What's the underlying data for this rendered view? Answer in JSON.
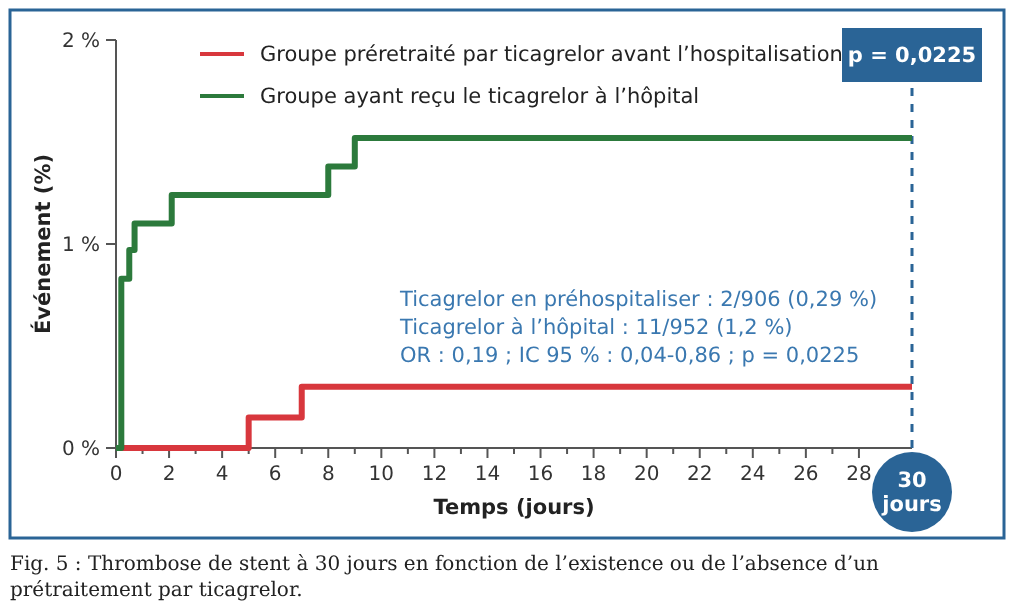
{
  "chart_data": {
    "type": "step",
    "xlabel": "Temps (jours)",
    "ylabel": "Événement (%)",
    "series": [
      {
        "name": "Groupe préretraité par ticagrelor avant l’hospitalisation",
        "color": "#d8373d",
        "x": [
          0,
          5,
          7,
          30
        ],
        "values": [
          0,
          0.15,
          0.3,
          0.3
        ]
      },
      {
        "name": "Groupe ayant reçu le ticagrelor à l’hôpital",
        "color": "#2c7a3c",
        "x": [
          0,
          0.2,
          0.5,
          0.7,
          2.1,
          8,
          9,
          30
        ],
        "values": [
          0,
          0.83,
          0.97,
          1.1,
          1.24,
          1.38,
          1.52,
          1.52
        ]
      }
    ],
    "xlim": [
      0,
      30
    ],
    "ylim": [
      0,
      2
    ],
    "xticks": [
      0,
      {
        "value": 1,
        "label": null
      },
      2,
      {
        "value": 3,
        "label": null
      },
      4,
      {
        "value": 5,
        "label": null
      },
      6,
      {
        "value": 7,
        "label": null
      },
      8,
      {
        "value": 9,
        "label": null
      },
      10,
      {
        "value": 11,
        "label": null
      },
      12,
      {
        "value": 13,
        "label": null
      },
      14,
      {
        "value": 15,
        "label": null
      },
      16,
      {
        "value": 17,
        "label": null
      },
      18,
      {
        "value": 19,
        "label": null
      },
      20,
      {
        "value": 21,
        "label": null
      },
      22,
      {
        "value": 23,
        "label": null
      },
      24,
      {
        "value": 25,
        "label": null
      },
      26,
      {
        "value": 27,
        "label": null
      },
      28
    ],
    "yticks": [
      {
        "value": 0,
        "label": "0 %"
      },
      {
        "value": 1,
        "label": "1 %"
      },
      {
        "value": 2,
        "label": "2 %"
      }
    ],
    "ref_lines": [
      {
        "axis": "x",
        "value": 30,
        "color": "#2a6496",
        "line_style": "dashed"
      }
    ],
    "annotations": [
      {
        "text": "p = 0,0225",
        "x": 30,
        "y": 2
      },
      {
        "text": "30 jours",
        "x": 30,
        "y": 0
      },
      "Ticagrelor en préhospitaliser : 2/906 (0,29 %)",
      "Ticagrelor à l’hôpital : 11/952 (1,2 %)",
      "OR : 0,19 ; IC 95 % : 0,04-0,86 ; p = 0,0225",
      "Fig. 5 : Thrombose de stent à 30 jours en fonction de l’existence ou de l’absence d’un prétraitement par ticagrelor."
    ],
    "legend": "top",
    "grid": false
  }
}
